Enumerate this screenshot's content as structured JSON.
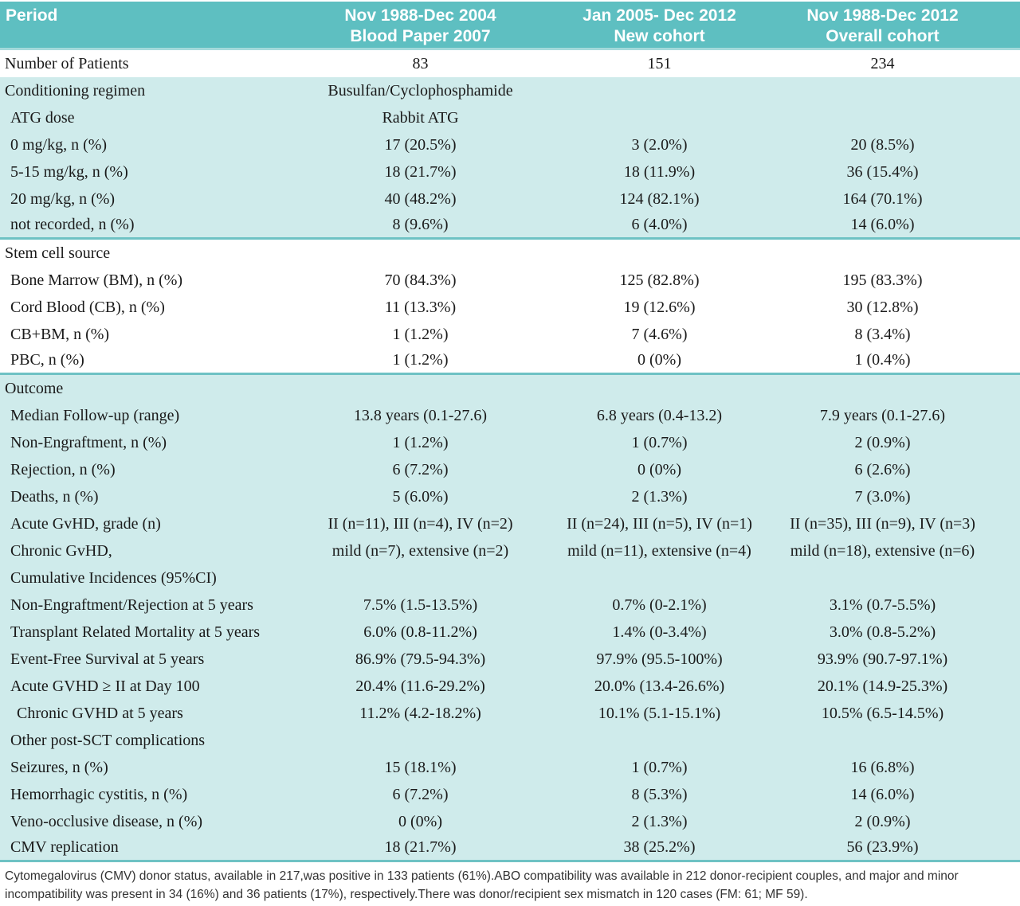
{
  "colors": {
    "header_bg": "#5ebfc1",
    "band_light_teal": "#cfebeb",
    "section_rule": "#6ec2c4",
    "header_text": "#ffffff"
  },
  "header": {
    "col1": "Period",
    "cols": [
      {
        "line1": "Nov 1988-Dec 2004",
        "line2": "Blood Paper 2007"
      },
      {
        "line1": "Jan 2005- Dec 2012",
        "line2": "New cohort"
      },
      {
        "line1": "Nov 1988-Dec 2012",
        "line2": "Overall cohort"
      }
    ]
  },
  "rows": [
    {
      "label": "Number of Patients",
      "v1": "83",
      "v2": "151",
      "v3": "234",
      "indent": 0,
      "band": "w",
      "rule": false
    },
    {
      "label": "Conditioning regimen",
      "v1": "Busulfan/Cyclophosphamide",
      "v2": "",
      "v3": "",
      "indent": 0,
      "band": "t",
      "rule": false
    },
    {
      "label": "ATG dose",
      "v1": "Rabbit ATG",
      "v2": "",
      "v3": "",
      "indent": 1,
      "band": "t",
      "rule": false
    },
    {
      "label": "0 mg/kg, n (%)",
      "v1": "17 (20.5%)",
      "v2": "3 (2.0%)",
      "v3": "20 (8.5%)",
      "indent": 1,
      "band": "t",
      "rule": false
    },
    {
      "label": "5-15 mg/kg, n (%)",
      "v1": "18 (21.7%)",
      "v2": "18 (11.9%)",
      "v3": "36 (15.4%)",
      "indent": 1,
      "band": "t",
      "rule": false
    },
    {
      "label": "20 mg/kg, n (%)",
      "v1": "40 (48.2%)",
      "v2": "124 (82.1%)",
      "v3": "164 (70.1%)",
      "indent": 1,
      "band": "t",
      "rule": false
    },
    {
      "label": "not recorded, n (%)",
      "v1": "8 (9.6%)",
      "v2": "6 (4.0%)",
      "v3": "14 (6.0%)",
      "indent": 1,
      "band": "t",
      "rule": true
    },
    {
      "label": "Stem cell source",
      "v1": "",
      "v2": "",
      "v3": "",
      "indent": 0,
      "band": "w",
      "rule": false
    },
    {
      "label": "Bone Marrow (BM), n (%)",
      "v1": "70 (84.3%)",
      "v2": "125 (82.8%)",
      "v3": "195 (83.3%)",
      "indent": 1,
      "band": "w",
      "rule": false
    },
    {
      "label": "Cord Blood (CB), n (%)",
      "v1": "11 (13.3%)",
      "v2": "19 (12.6%)",
      "v3": "30 (12.8%)",
      "indent": 1,
      "band": "w",
      "rule": false
    },
    {
      "label": "CB+BM, n (%)",
      "v1": "1 (1.2%)",
      "v2": "7 (4.6%)",
      "v3": "8 (3.4%)",
      "indent": 1,
      "band": "w",
      "rule": false
    },
    {
      "label": "PBC, n (%)",
      "v1": "1 (1.2%)",
      "v2": "0 (0%)",
      "v3": "1 (0.4%)",
      "indent": 1,
      "band": "w",
      "rule": true
    },
    {
      "label": "Outcome",
      "v1": "",
      "v2": "",
      "v3": "",
      "indent": 0,
      "band": "t",
      "rule": false
    },
    {
      "label": "Median Follow-up (range)",
      "v1": "13.8 years (0.1-27.6)",
      "v2": "6.8 years (0.4-13.2)",
      "v3": "7.9 years (0.1-27.6)",
      "indent": 1,
      "band": "t",
      "rule": false
    },
    {
      "label": "Non-Engraftment, n (%)",
      "v1": "1 (1.2%)",
      "v2": "1 (0.7%)",
      "v3": "2 (0.9%)",
      "indent": 1,
      "band": "t",
      "rule": false
    },
    {
      "label": "Rejection, n (%)",
      "v1": "6 (7.2%)",
      "v2": "0 (0%)",
      "v3": "6 (2.6%)",
      "indent": 1,
      "band": "t",
      "rule": false
    },
    {
      "label": "Deaths, n (%)",
      "v1": "5 (6.0%)",
      "v2": "2 (1.3%)",
      "v3": "7 (3.0%)",
      "indent": 1,
      "band": "t",
      "rule": false
    },
    {
      "label": "Acute GvHD, grade (n)",
      "v1": "II (n=11), III (n=4), IV (n=2)",
      "v2": "II (n=24), III (n=5), IV (n=1)",
      "v3": "II (n=35), III (n=9), IV (n=3)",
      "indent": 1,
      "band": "t",
      "rule": false
    },
    {
      "label": "Chronic GvHD,",
      "v1": "mild (n=7), extensive (n=2)",
      "v2": "mild (n=11), extensive (n=4)",
      "v3": "mild (n=18), extensive (n=6)",
      "indent": 1,
      "band": "t",
      "rule": false
    },
    {
      "label": "Cumulative Incidences (95%CI)",
      "v1": "",
      "v2": "",
      "v3": "",
      "indent": 1,
      "band": "t",
      "rule": false
    },
    {
      "label": "Non-Engraftment/Rejection at 5 years",
      "v1": "7.5% (1.5-13.5%)",
      "v2": "0.7% (0-2.1%)",
      "v3": "3.1% (0.7-5.5%)",
      "indent": 1,
      "band": "t",
      "rule": false
    },
    {
      "label": "Transplant Related Mortality at 5 years",
      "v1": "6.0% (0.8-11.2%)",
      "v2": "1.4% (0-3.4%)",
      "v3": "3.0% (0.8-5.2%)",
      "indent": 1,
      "band": "t",
      "rule": false
    },
    {
      "label": "Event-Free Survival at 5 years",
      "v1": "86.9% (79.5-94.3%)",
      "v2": "97.9% (95.5-100%)",
      "v3": "93.9% (90.7-97.1%)",
      "indent": 1,
      "band": "t",
      "rule": false
    },
    {
      "label": "Acute GVHD ≥ II at Day 100",
      "v1": "20.4% (11.6-29.2%)",
      "v2": "20.0% (13.4-26.6%)",
      "v3": "20.1% (14.9-25.3%)",
      "indent": 1,
      "band": "t",
      "rule": false
    },
    {
      "label": "Chronic GVHD at 5 years",
      "v1": "11.2% (4.2-18.2%)",
      "v2": "10.1% (5.1-15.1%)",
      "v3": "10.5% (6.5-14.5%)",
      "indent": 2,
      "band": "t",
      "rule": false
    },
    {
      "label": "Other post-SCT complications",
      "v1": "",
      "v2": "",
      "v3": "",
      "indent": 1,
      "band": "t",
      "rule": false
    },
    {
      "label": "Seizures, n (%)",
      "v1": "15 (18.1%)",
      "v2": "1 (0.7%)",
      "v3": "16 (6.8%)",
      "indent": 1,
      "band": "t",
      "rule": false
    },
    {
      "label": "Hemorrhagic cystitis, n (%)",
      "v1": "6 (7.2%)",
      "v2": "8 (5.3%)",
      "v3": "14 (6.0%)",
      "indent": 1,
      "band": "t",
      "rule": false
    },
    {
      "label": "Veno-occlusive disease, n (%)",
      "v1": "0 (0%)",
      "v2": "2 (1.3%)",
      "v3": "2 (0.9%)",
      "indent": 1,
      "band": "t",
      "rule": false
    },
    {
      "label": "CMV replication",
      "v1": "18 (21.7%)",
      "v2": "38 (25.2%)",
      "v3": "56 (23.9%)",
      "indent": 1,
      "band": "t",
      "rule": true
    }
  ],
  "footnote": {
    "line1": "Cytomegalovirus (CMV) donor status, available in 217,was positive in 133 patients (61%).ABO compatibility was available in 212 donor-recipient couples, and major and minor",
    "line2": "incompatibility was present in 34 (16%) and 36 patients (17%), respectively.There was donor/recipient sex mismatch in 120 cases (FM: 61; MF 59)."
  }
}
